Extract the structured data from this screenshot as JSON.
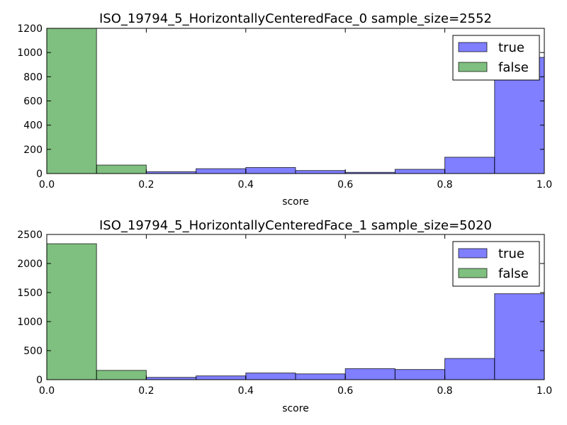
{
  "chart_data": [
    {
      "type": "bar",
      "title": "ISO_19794_5_HorizontallyCenteredFace_0 sample_size=2552",
      "xlabel": "score",
      "ylabel": "",
      "xlim": [
        0.0,
        1.0
      ],
      "ylim": [
        0,
        1200
      ],
      "xticks": [
        "0.0",
        "0.2",
        "0.4",
        "0.6",
        "0.8",
        "1.0"
      ],
      "yticks": [
        "0",
        "200",
        "400",
        "600",
        "800",
        "1000",
        "1200"
      ],
      "legend_position": "top-right",
      "grid": false,
      "bin_edges": [
        0.0,
        0.1,
        0.2,
        0.3,
        0.4,
        0.5,
        0.6,
        0.7,
        0.8,
        0.9,
        1.0
      ],
      "series": [
        {
          "name": "true",
          "color": "#0000ff",
          "values": [
            0,
            0,
            15,
            40,
            50,
            25,
            10,
            35,
            135,
            960
          ]
        },
        {
          "name": "false",
          "color": "#008000",
          "values": [
            1200,
            70,
            0,
            0,
            0,
            0,
            0,
            0,
            0,
            0
          ]
        }
      ]
    },
    {
      "type": "bar",
      "title": "ISO_19794_5_HorizontallyCenteredFace_1 sample_size=5020",
      "xlabel": "score",
      "ylabel": "",
      "xlim": [
        0.0,
        1.0
      ],
      "ylim": [
        0,
        2500
      ],
      "xticks": [
        "0.0",
        "0.2",
        "0.4",
        "0.6",
        "0.8",
        "1.0"
      ],
      "yticks": [
        "0",
        "500",
        "1000",
        "1500",
        "2000",
        "2500"
      ],
      "legend_position": "top-right",
      "grid": false,
      "bin_edges": [
        0.0,
        0.1,
        0.2,
        0.3,
        0.4,
        0.5,
        0.6,
        0.7,
        0.8,
        0.9,
        1.0
      ],
      "series": [
        {
          "name": "true",
          "color": "#0000ff",
          "values": [
            0,
            0,
            40,
            65,
            115,
            100,
            190,
            175,
            365,
            1480
          ]
        },
        {
          "name": "false",
          "color": "#008000",
          "values": [
            2340,
            160,
            0,
            0,
            0,
            0,
            0,
            0,
            0,
            0
          ]
        }
      ]
    }
  ]
}
